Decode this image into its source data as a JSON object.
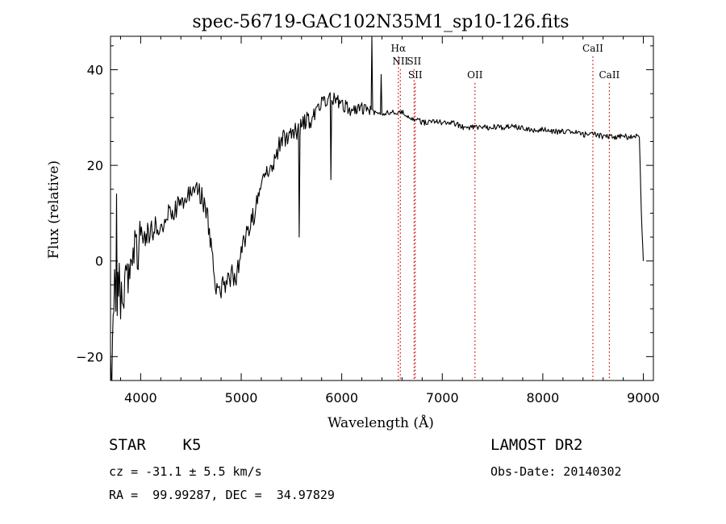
{
  "chart_data": {
    "type": "line",
    "title": "spec-56719-GAC102N35M1_sp10-126.fits",
    "xlabel": "Wavelength (Å)",
    "ylabel": "Flux (relative)",
    "xlim": [
      3700,
      9100
    ],
    "ylim": [
      -25,
      47
    ],
    "xticks": [
      4000,
      5000,
      6000,
      7000,
      8000,
      9000
    ],
    "yticks": [
      -20,
      0,
      20,
      40
    ],
    "grid": false,
    "series": [
      {
        "color": "#000000",
        "x": [
          3700,
          3720,
          3740,
          3760,
          3780,
          3800,
          3850,
          3900,
          3950,
          4000,
          4100,
          4200,
          4300,
          4400,
          4450,
          4500,
          4550,
          4600,
          4650,
          4700,
          4750,
          4800,
          4850,
          4900,
          4950,
          5000,
          5100,
          5200,
          5300,
          5400,
          5500,
          5600,
          5700,
          5800,
          5900,
          6000,
          6100,
          6200,
          6300,
          6400,
          6500,
          6600,
          6700,
          6800,
          6900,
          7000,
          7100,
          7200,
          7300,
          7400,
          7500,
          7600,
          7700,
          7800,
          7900,
          8000,
          8100,
          8200,
          8300,
          8400,
          8500,
          8600,
          8700,
          8800,
          8900,
          8960,
          8980,
          9000
        ],
        "y": [
          -22,
          -18,
          -5,
          -15,
          -3,
          -8,
          -3,
          -2,
          2,
          5,
          6,
          8,
          10,
          12,
          13,
          14,
          15,
          14,
          11,
          4,
          -5,
          -6,
          -4,
          -3,
          -3,
          2,
          8,
          15,
          20,
          25,
          27,
          28,
          30,
          33,
          34,
          33,
          31,
          32,
          31,
          31,
          31,
          31,
          30,
          29,
          29,
          29,
          29,
          28,
          28,
          28,
          28,
          28,
          28,
          28,
          27.5,
          27.5,
          27,
          27,
          27,
          26.5,
          26.5,
          26,
          26,
          26,
          26,
          26,
          10,
          0
        ]
      }
    ],
    "spikes": [
      {
        "x": 3760,
        "y": 14
      },
      {
        "x": 5580,
        "y": 5
      },
      {
        "x": 5890,
        "y": 17
      },
      {
        "x": 6300,
        "y": 47
      },
      {
        "x": 6390,
        "y": 39
      }
    ],
    "lines": [
      {
        "label": "Hα",
        "x": 6563,
        "row": 1
      },
      {
        "label": "NII",
        "x": 6583,
        "row": 2
      },
      {
        "label": "SII",
        "x": 6720,
        "row": 2
      },
      {
        "label": "SII",
        "x": 6731,
        "row": 3
      },
      {
        "label": "OII",
        "x": 7325,
        "row": 3
      },
      {
        "label": "CaII",
        "x": 8498,
        "row": 1
      },
      {
        "label": "CaII",
        "x": 8662,
        "row": 3
      }
    ],
    "line_color": "#cc0000",
    "annotations": {
      "object": "STAR    K5",
      "survey": "LAMOST DR2",
      "cz": "cz = -31.1 ± 5.5 km/s",
      "obsdate": "Obs-Date: 20140302",
      "radec": "RA =  99.99287, DEC =  34.97829"
    }
  }
}
